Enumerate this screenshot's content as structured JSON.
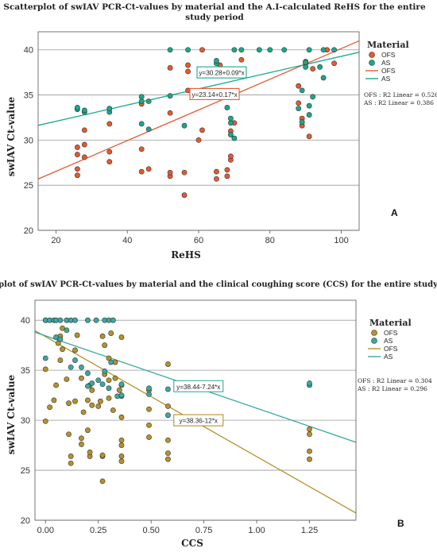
{
  "chart_data": [
    {
      "type": "scatter",
      "panel_label": "A",
      "title": "Scatterplot of swIAV PCR-Ct-values by material and the A.I-calculated ReHS for the entire study period",
      "title_lines": [
        "Scatterplot of swIAV PCR-Ct-values by material and the A.I-calculated ReHS for the entire",
        "study period"
      ],
      "xlabel": "ReHS",
      "ylabel": "swIAV Ct-value",
      "xlim": [
        15,
        105
      ],
      "ylim": [
        20,
        42
      ],
      "xticks": [
        "20",
        "40",
        "60",
        "80",
        "100"
      ],
      "yticks": [
        "20",
        "25",
        "30",
        "35",
        "40"
      ],
      "grid": "horizontal",
      "legend": {
        "title": "Material",
        "entries": [
          "OFS",
          "AS",
          "OFS",
          "AS"
        ],
        "placement": "right"
      },
      "r2_labels": [
        "OFS : R2 Linear = 0.526",
        "AS : R2 Linear = 0.386"
      ],
      "series": [
        {
          "name": "OFS",
          "color": "#e8582f",
          "fit_label": "y=23.14+0.17*x",
          "fit": {
            "intercept": 23.14,
            "slope": 0.17
          },
          "points": [
            [
              26,
              26.1
            ],
            [
              26,
              26.8
            ],
            [
              26,
              28.4
            ],
            [
              26,
              29.2
            ],
            [
              28,
              28.1
            ],
            [
              28,
              29.5
            ],
            [
              28,
              31.1
            ],
            [
              35,
              27.6
            ],
            [
              35,
              28.7
            ],
            [
              35,
              31.8
            ],
            [
              44,
              26.5
            ],
            [
              44,
              29.0
            ],
            [
              44,
              34.0
            ],
            [
              46,
              26.8
            ],
            [
              52,
              26.0
            ],
            [
              52,
              26.4
            ],
            [
              52,
              33.0
            ],
            [
              52,
              38.0
            ],
            [
              56,
              23.9
            ],
            [
              56,
              26.4
            ],
            [
              57,
              35.5
            ],
            [
              57,
              37.6
            ],
            [
              57,
              38.3
            ],
            [
              60,
              30.0
            ],
            [
              61,
              31.1
            ],
            [
              61,
              35.4
            ],
            [
              61,
              40.0
            ],
            [
              65,
              25.7
            ],
            [
              65,
              26.5
            ],
            [
              66,
              38.3
            ],
            [
              68,
              26.0
            ],
            [
              68,
              26.7
            ],
            [
              69,
              27.8
            ],
            [
              69,
              28.2
            ],
            [
              69,
              31.0
            ],
            [
              70,
              31.9
            ],
            [
              72,
              37.5
            ],
            [
              72,
              38.9
            ],
            [
              88,
              34.1
            ],
            [
              88,
              36.0
            ],
            [
              89,
              31.6
            ],
            [
              89,
              32.4
            ],
            [
              90,
              38.5
            ],
            [
              90,
              38.7
            ],
            [
              91,
              30.4
            ],
            [
              92,
              37.9
            ],
            [
              96,
              40.0
            ],
            [
              98,
              38.5
            ]
          ]
        },
        {
          "name": "AS",
          "color": "#19a98a",
          "fit_label": "y=30.28+0.09*x",
          "fit": {
            "intercept": 30.28,
            "slope": 0.09
          },
          "points": [
            [
              26,
              33.4
            ],
            [
              26,
              33.6
            ],
            [
              28,
              33.1
            ],
            [
              28,
              33.3
            ],
            [
              35,
              33.1
            ],
            [
              35,
              33.5
            ],
            [
              44,
              31.8
            ],
            [
              44,
              34.3
            ],
            [
              44,
              34.8
            ],
            [
              46,
              31.2
            ],
            [
              46,
              34.3
            ],
            [
              52,
              34.9
            ],
            [
              52,
              40.0
            ],
            [
              56,
              31.6
            ],
            [
              57,
              40.0
            ],
            [
              65,
              38.5
            ],
            [
              65,
              38.8
            ],
            [
              68,
              33.6
            ],
            [
              69,
              30.6
            ],
            [
              69,
              31.9
            ],
            [
              69,
              32.4
            ],
            [
              70,
              30.2
            ],
            [
              70,
              40.0
            ],
            [
              72,
              40.0
            ],
            [
              77,
              40.0
            ],
            [
              80,
              40.0
            ],
            [
              84,
              40.0
            ],
            [
              88,
              33.5
            ],
            [
              89,
              32.0
            ],
            [
              89,
              35.5
            ],
            [
              90,
              38.1
            ],
            [
              90,
              38.6
            ],
            [
              91,
              32.8
            ],
            [
              91,
              33.8
            ],
            [
              91,
              40.0
            ],
            [
              92,
              34.8
            ],
            [
              94,
              38.1
            ],
            [
              95,
              36.9
            ],
            [
              95,
              40.0
            ],
            [
              98,
              40.0
            ]
          ]
        }
      ]
    },
    {
      "type": "scatter",
      "panel_label": "B",
      "title": "Scatterplot of swIAV PCR-Ct-values by material and the clinical coughing score (CCS) for the entire study period",
      "title_lines": [
        "Scatterplot of swIAV PCR-Ct-values by material and the clinical coughing score (CCS) for the entire study period"
      ],
      "xlabel": "CCS",
      "ylabel": "swIAV Ct-value",
      "xlim": [
        -0.05,
        1.47
      ],
      "ylim": [
        20,
        42
      ],
      "xticks": [
        "0.00",
        "0.25",
        "0.50",
        "0.75",
        "1.00",
        "1.25"
      ],
      "yticks": [
        "20",
        "25",
        "30",
        "35",
        "40"
      ],
      "grid": "horizontal",
      "legend": {
        "title": "Material",
        "entries": [
          "OFS",
          "AS",
          "OFS",
          "AS"
        ],
        "placement": "right"
      },
      "r2_labels": [
        "OFS : R2 Linear = 0.304",
        "AS : R2 Linear = 0.296"
      ],
      "series": [
        {
          "name": "OFS",
          "color": "#b5922c",
          "fit_label": "y=38.36-12*x",
          "fit": {
            "intercept": 38.36,
            "slope": -12
          },
          "points": [
            [
              0.0,
              40.0
            ],
            [
              0.0,
              35.1
            ],
            [
              0.0,
              29.9
            ],
            [
              0.02,
              31.3
            ],
            [
              0.04,
              32.0
            ],
            [
              0.05,
              33.5
            ],
            [
              0.06,
              37.7
            ],
            [
              0.07,
              36.0
            ],
            [
              0.07,
              38.4
            ],
            [
              0.08,
              37.1
            ],
            [
              0.08,
              39.2
            ],
            [
              0.1,
              34.1
            ],
            [
              0.11,
              28.6
            ],
            [
              0.11,
              31.7
            ],
            [
              0.12,
              26.4
            ],
            [
              0.12,
              25.7
            ],
            [
              0.14,
              31.9
            ],
            [
              0.14,
              37.0
            ],
            [
              0.15,
              38.5
            ],
            [
              0.17,
              27.6
            ],
            [
              0.17,
              28.2
            ],
            [
              0.17,
              34.2
            ],
            [
              0.18,
              30.8
            ],
            [
              0.2,
              29.0
            ],
            [
              0.2,
              32.0
            ],
            [
              0.21,
              26.4
            ],
            [
              0.21,
              26.8
            ],
            [
              0.21,
              33.5
            ],
            [
              0.22,
              31.5
            ],
            [
              0.22,
              33.0
            ],
            [
              0.25,
              31.4
            ],
            [
              0.26,
              31.9
            ],
            [
              0.27,
              26.4
            ],
            [
              0.27,
              26.5
            ],
            [
              0.27,
              23.9
            ],
            [
              0.27,
              38.4
            ],
            [
              0.28,
              34.6
            ],
            [
              0.28,
              37.5
            ],
            [
              0.3,
              32.2
            ],
            [
              0.3,
              34.0
            ],
            [
              0.3,
              36.2
            ],
            [
              0.31,
              38.7
            ],
            [
              0.32,
              31.0
            ],
            [
              0.33,
              34.2
            ],
            [
              0.33,
              35.8
            ],
            [
              0.35,
              33.0
            ],
            [
              0.36,
              25.9
            ],
            [
              0.36,
              26.4
            ],
            [
              0.36,
              27.5
            ],
            [
              0.36,
              28.0
            ],
            [
              0.36,
              30.3
            ],
            [
              0.36,
              32.4
            ],
            [
              0.36,
              33.5
            ],
            [
              0.36,
              38.3
            ],
            [
              0.49,
              28.3
            ],
            [
              0.49,
              29.5
            ],
            [
              0.49,
              31.1
            ],
            [
              0.49,
              33.0
            ],
            [
              0.58,
              26.1
            ],
            [
              0.58,
              26.7
            ],
            [
              0.58,
              28.0
            ],
            [
              0.58,
              31.4
            ],
            [
              0.58,
              35.6
            ],
            [
              1.25,
              26.1
            ],
            [
              1.25,
              26.9
            ],
            [
              1.25,
              28.6
            ],
            [
              1.25,
              29.1
            ]
          ]
        },
        {
          "name": "AS",
          "color": "#3aa9a3",
          "fit_label": "y=38.44-7.24*x",
          "fit": {
            "intercept": 38.44,
            "slope": -7.24
          },
          "points": [
            [
              0.0,
              40.0
            ],
            [
              0.02,
              40.0
            ],
            [
              0.04,
              40.0
            ],
            [
              0.05,
              40.0
            ],
            [
              0.07,
              40.0
            ],
            [
              0.1,
              40.0
            ],
            [
              0.12,
              40.0
            ],
            [
              0.14,
              40.0
            ],
            [
              0.2,
              40.0
            ],
            [
              0.24,
              40.0
            ],
            [
              0.28,
              40.0
            ],
            [
              0.3,
              40.0
            ],
            [
              0.32,
              40.0
            ],
            [
              0.0,
              36.2
            ],
            [
              0.05,
              38.3
            ],
            [
              0.07,
              38.1
            ],
            [
              0.1,
              39.0
            ],
            [
              0.12,
              35.3
            ],
            [
              0.14,
              36.0
            ],
            [
              0.17,
              35.3
            ],
            [
              0.2,
              34.7
            ],
            [
              0.2,
              33.4
            ],
            [
              0.22,
              33.7
            ],
            [
              0.25,
              34.0
            ],
            [
              0.27,
              33.6
            ],
            [
              0.28,
              34.9
            ],
            [
              0.3,
              33.2
            ],
            [
              0.31,
              35.8
            ],
            [
              0.34,
              32.4
            ],
            [
              0.36,
              32.5
            ],
            [
              0.36,
              33.6
            ],
            [
              0.49,
              32.6
            ],
            [
              0.49,
              33.2
            ],
            [
              0.58,
              30.5
            ],
            [
              0.58,
              33.1
            ],
            [
              1.25,
              33.5
            ],
            [
              1.25,
              33.7
            ]
          ]
        }
      ]
    }
  ]
}
